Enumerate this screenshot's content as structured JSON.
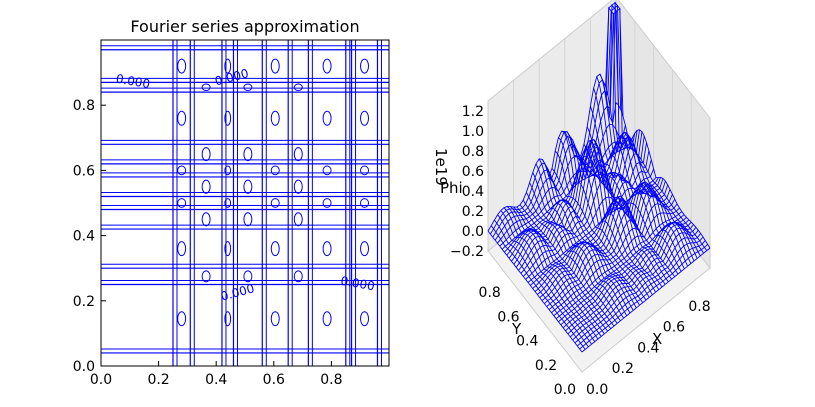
{
  "chart_data": [
    {
      "type": "contour",
      "title": "Fourier series approximation",
      "xlim": [
        0.0,
        1.0
      ],
      "ylim": [
        0.0,
        1.0
      ],
      "xticks": [
        "0.0",
        "0.2",
        "0.4",
        "0.6",
        "0.8"
      ],
      "yticks": [
        "0.0",
        "0.2",
        "0.4",
        "0.6",
        "0.8"
      ],
      "color": "#0000ff",
      "vertical_lines_x": [
        0.25,
        0.31,
        0.42,
        0.46,
        0.56,
        0.65,
        0.72,
        0.85,
        0.87,
        0.96
      ],
      "horizontal_lines_y": [
        0.04,
        0.25,
        0.3,
        0.42,
        0.48,
        0.52,
        0.58,
        0.62,
        0.68,
        0.84,
        0.87,
        0.97
      ],
      "contour_labels": [
        {
          "text": "0.000",
          "x": 0.05,
          "y": 0.87
        },
        {
          "text": "0.000",
          "x": 0.4,
          "y": 0.86
        },
        {
          "text": "0.000",
          "x": 0.83,
          "y": 0.25
        },
        {
          "text": "0.000",
          "x": 0.42,
          "y": 0.2
        }
      ]
    },
    {
      "type": "surface3d",
      "zlabel": "Phi",
      "ylabel": "Y",
      "xlabel": "X",
      "z_offset_text": "1e19",
      "zticks": [
        "−0.2",
        "0.0",
        "0.2",
        "0.4",
        "0.6",
        "0.8",
        "1.0",
        "1.2"
      ],
      "yticks": [
        "0.0",
        "0.2",
        "0.4",
        "0.6",
        "0.8"
      ],
      "xticks": [
        "0.0",
        "0.2",
        "0.4",
        "0.6",
        "0.8"
      ],
      "color": "#0000ff"
    }
  ]
}
